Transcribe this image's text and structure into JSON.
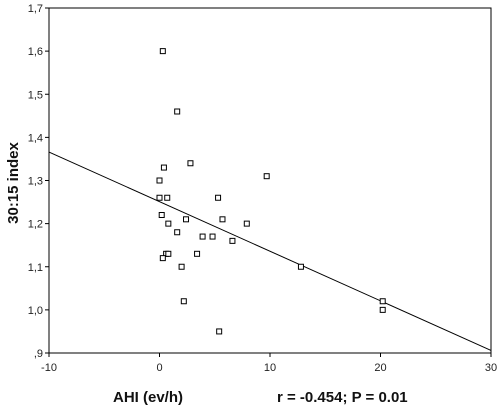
{
  "chart_data": {
    "type": "scatter",
    "title": "",
    "xlabel": "AHI (ev/h)",
    "ylabel": "30:15 index",
    "annotation": "r = -0.454; P = 0.01",
    "xlim": [
      -10,
      30
    ],
    "ylim": [
      0.9,
      1.7
    ],
    "x_ticks": [
      -10,
      0,
      10,
      20,
      30
    ],
    "x_tick_labels": [
      "-10",
      "0",
      "10",
      "20",
      "30"
    ],
    "y_ticks": [
      0.9,
      1.0,
      1.1,
      1.2,
      1.3,
      1.4,
      1.5,
      1.6,
      1.7
    ],
    "y_tick_labels": [
      ",9",
      "1,0",
      "1,1",
      "1,2",
      "1,3",
      "1,4",
      "1,5",
      "1,6",
      "1,7"
    ],
    "grid": false,
    "marker": "open-square",
    "points": [
      {
        "x": 0.3,
        "y": 1.6
      },
      {
        "x": 1.6,
        "y": 1.46
      },
      {
        "x": 2.8,
        "y": 1.34
      },
      {
        "x": 0.4,
        "y": 1.33
      },
      {
        "x": 9.7,
        "y": 1.31
      },
      {
        "x": 0.0,
        "y": 1.3
      },
      {
        "x": 5.3,
        "y": 1.26
      },
      {
        "x": 0.0,
        "y": 1.26
      },
      {
        "x": 0.7,
        "y": 1.26
      },
      {
        "x": 0.2,
        "y": 1.22
      },
      {
        "x": 2.4,
        "y": 1.21
      },
      {
        "x": 5.7,
        "y": 1.21
      },
      {
        "x": 0.8,
        "y": 1.2
      },
      {
        "x": 7.9,
        "y": 1.2
      },
      {
        "x": 1.6,
        "y": 1.18
      },
      {
        "x": 3.9,
        "y": 1.17
      },
      {
        "x": 4.8,
        "y": 1.17
      },
      {
        "x": 6.6,
        "y": 1.16
      },
      {
        "x": 3.4,
        "y": 1.13
      },
      {
        "x": 0.6,
        "y": 1.13
      },
      {
        "x": 0.8,
        "y": 1.13
      },
      {
        "x": 0.3,
        "y": 1.12
      },
      {
        "x": 2.0,
        "y": 1.1
      },
      {
        "x": 12.8,
        "y": 1.1
      },
      {
        "x": 2.2,
        "y": 1.02
      },
      {
        "x": 20.2,
        "y": 1.02
      },
      {
        "x": 20.2,
        "y": 1.0
      },
      {
        "x": 5.4,
        "y": 0.95
      }
    ],
    "fit_line": {
      "x": [
        -10,
        30
      ],
      "y": [
        1.366,
        0.906
      ]
    }
  }
}
